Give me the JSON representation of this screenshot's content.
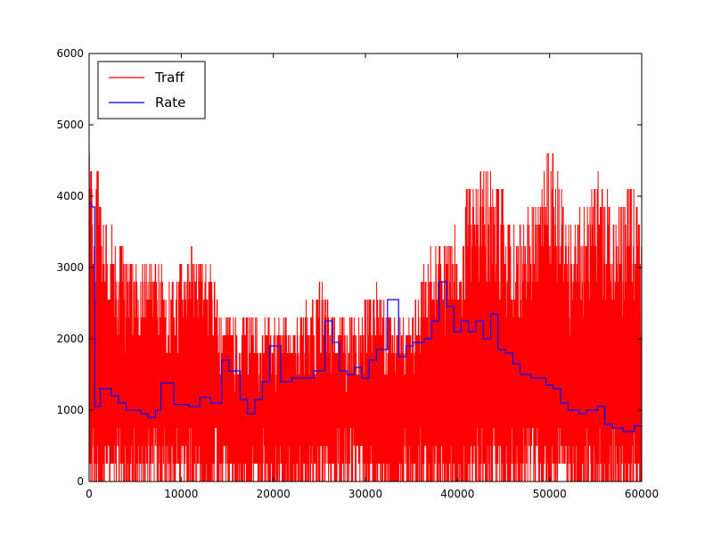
{
  "chart_data": {
    "type": "line",
    "title": "",
    "xlabel": "",
    "ylabel": "",
    "xlim": [
      0,
      60000
    ],
    "ylim": [
      0,
      6000
    ],
    "x_ticks": [
      0,
      10000,
      20000,
      30000,
      40000,
      50000,
      60000
    ],
    "y_ticks": [
      0,
      1000,
      2000,
      3000,
      4000,
      5000,
      6000
    ],
    "x_tick_labels": [
      "0",
      "10000",
      "20000",
      "30000",
      "40000",
      "50000",
      "60000"
    ],
    "y_tick_labels": [
      "0",
      "1000",
      "2000",
      "3000",
      "4000",
      "5000",
      "6000"
    ],
    "grid": false,
    "legend_position": "top-left",
    "series": [
      {
        "name": "Traff",
        "color": "#ff0000",
        "style": "dense noisy line, values oscillating between ~0 and the envelope",
        "envelope_x": [
          0,
          1000,
          2000,
          3000,
          5000,
          7000,
          9000,
          11000,
          13000,
          15000,
          17000,
          19000,
          21000,
          23000,
          25000,
          27000,
          29000,
          31000,
          33000,
          35000,
          37000,
          39000,
          41000,
          43000,
          45000,
          47000,
          49000,
          50000,
          52000,
          54000,
          55000,
          57000,
          59000,
          60000
        ],
        "envelope_y": [
          4600,
          4300,
          3600,
          3300,
          3100,
          3100,
          2800,
          3300,
          3000,
          2300,
          2300,
          2300,
          2300,
          2300,
          2800,
          2300,
          2300,
          2800,
          2300,
          2300,
          3300,
          3300,
          4000,
          4600,
          4000,
          3600,
          4000,
          5100,
          3600,
          3800,
          4400,
          3800,
          4100,
          3800
        ],
        "floor": 0
      },
      {
        "name": "Rate",
        "color": "#0000ff",
        "style": "step",
        "x": [
          0,
          250,
          600,
          1200,
          2400,
          3200,
          4000,
          5600,
          6400,
          7200,
          7800,
          9200,
          10800,
          12000,
          13200,
          14400,
          15200,
          16400,
          17200,
          18000,
          18800,
          19600,
          20800,
          22000,
          23200,
          24400,
          25600,
          26400,
          27200,
          28000,
          28800,
          29600,
          30400,
          31200,
          32400,
          33600,
          34400,
          35200,
          36400,
          37200,
          38000,
          38800,
          39600,
          40400,
          41200,
          42000,
          42800,
          43600,
          44400,
          45200,
          46000,
          46800,
          48000,
          49600,
          50400,
          51200,
          52000,
          53200,
          54000,
          55200,
          56000,
          56800,
          58000,
          59200,
          60000
        ],
        "y": [
          3900,
          3850,
          1050,
          1300,
          1200,
          1100,
          1000,
          950,
          900,
          1000,
          1380,
          1080,
          1050,
          1180,
          1100,
          1700,
          1550,
          1150,
          950,
          1150,
          1400,
          1900,
          1400,
          1450,
          1450,
          1550,
          2250,
          1950,
          1550,
          1500,
          1600,
          1450,
          1700,
          1850,
          2550,
          1750,
          1900,
          1950,
          2000,
          2250,
          2800,
          2450,
          2100,
          2250,
          2100,
          2250,
          2000,
          2350,
          1850,
          1800,
          1650,
          1500,
          1450,
          1350,
          1300,
          1100,
          1000,
          950,
          1000,
          1050,
          800,
          750,
          700,
          780,
          700
        ]
      }
    ]
  }
}
